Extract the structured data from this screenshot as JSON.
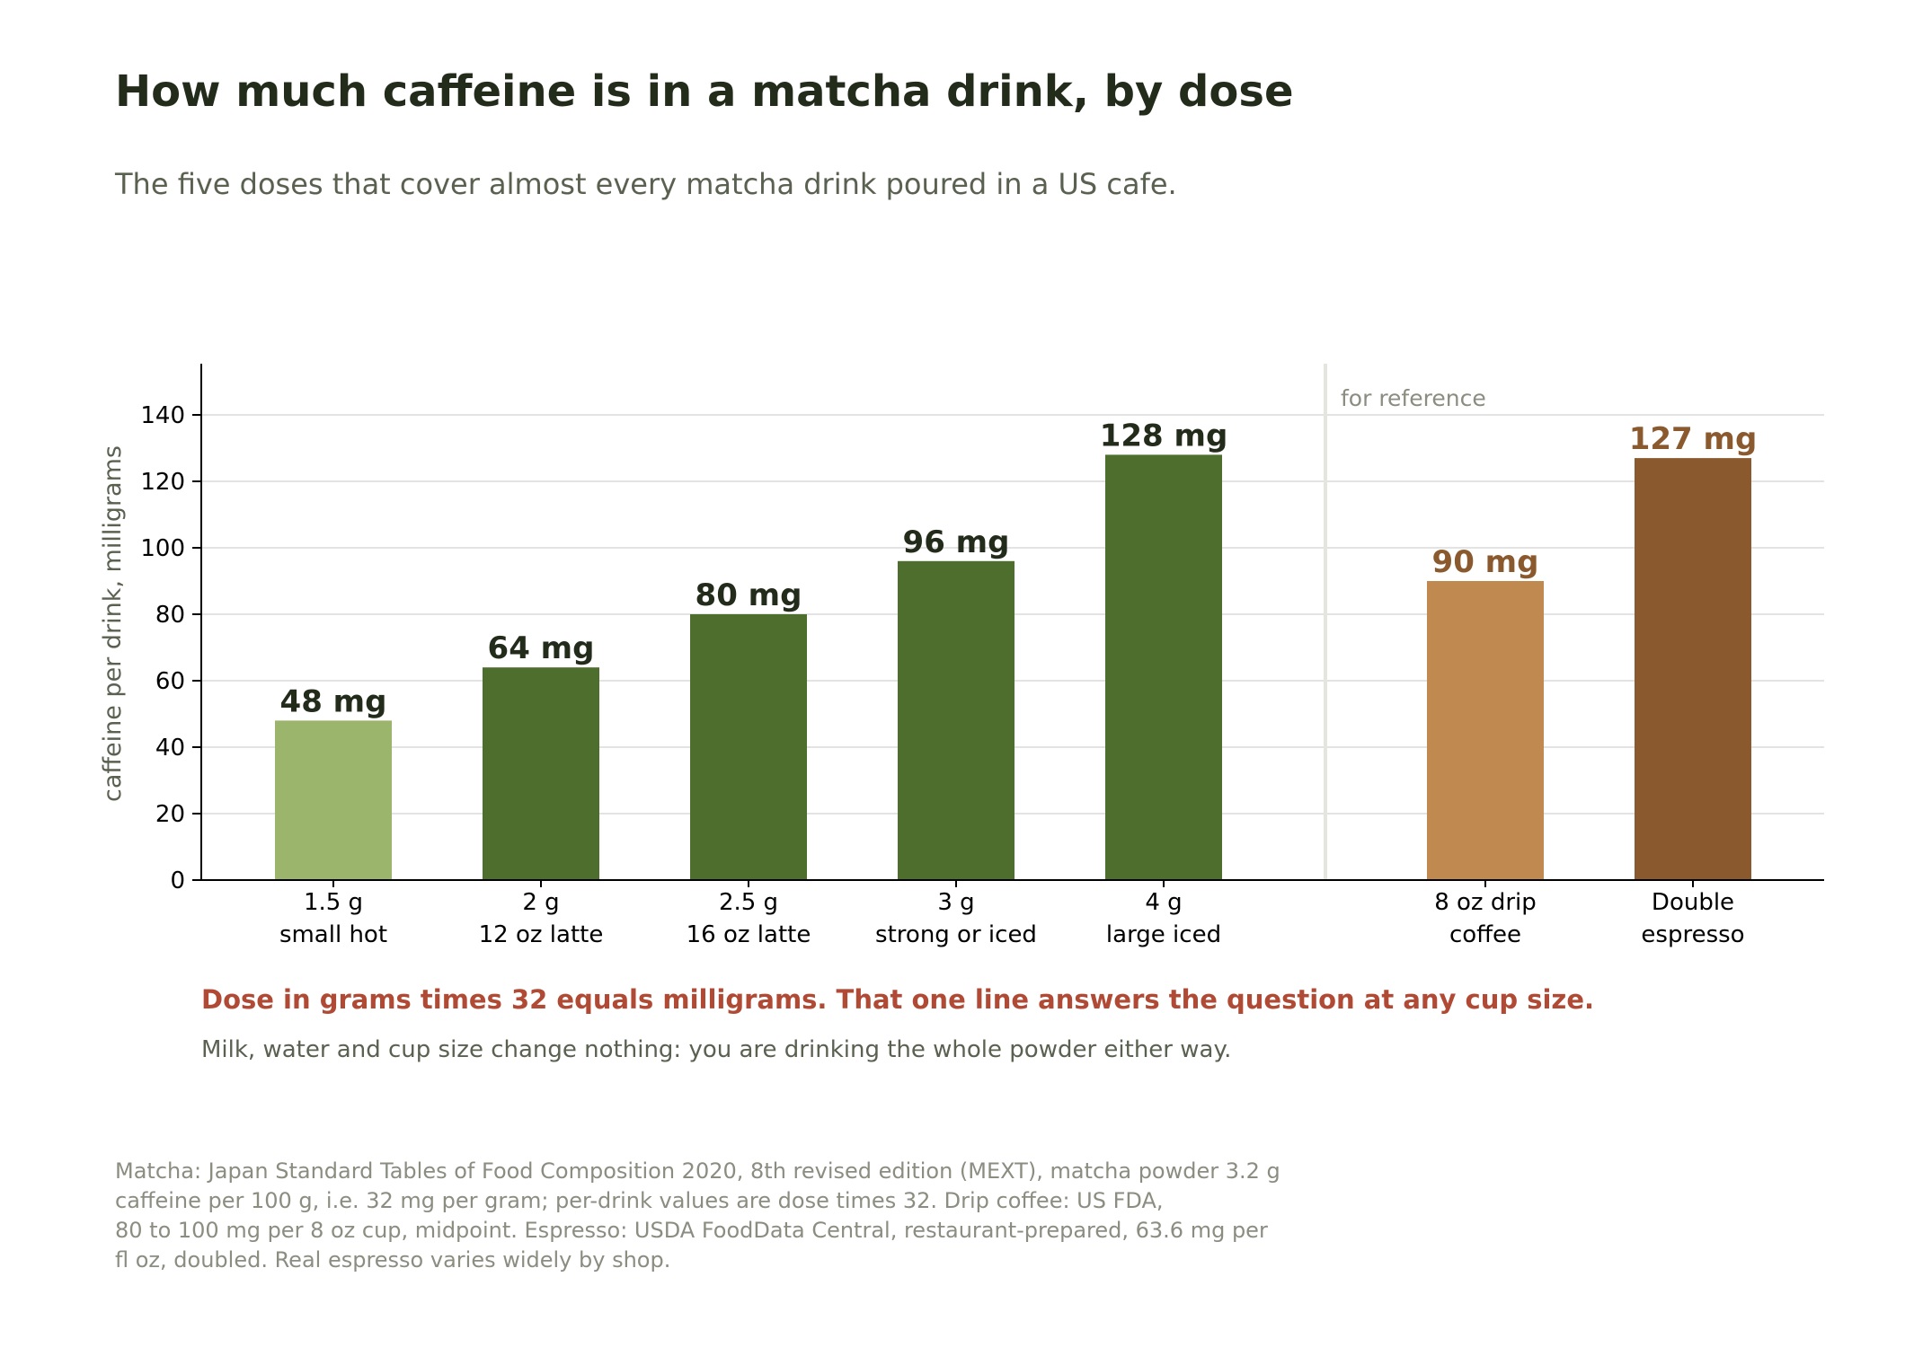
{
  "title": "How much caffeine is in a matcha drink, by dose",
  "subtitle": "The five doses that cover almost every matcha drink poured in a US cafe.",
  "takeaway": "Dose in grams times 32 equals milligrams. That one line answers the question at any cup size.",
  "takeaway_sub": "Milk, water and cup size change nothing: you are drinking the whole powder either way.",
  "source_lines": [
    "Matcha: Japan Standard Tables of Food Composition 2020, 8th revised edition (MEXT), matcha powder 3.2 g",
    "caffeine per 100 g, i.e. 32 mg per gram; per-drink values are dose times 32. Drip coffee: US FDA,",
    "80 to 100 mg per 8 oz cup, midpoint. Espresso: USDA FoodData Central, restaurant-prepared, 63.6 mg per",
    "fl oz, doubled. Real espresso varies widely by shop."
  ],
  "chart_data": {
    "type": "bar",
    "ylabel": "caffeine per drink, milligrams",
    "xlabel": "",
    "ylim": [
      0,
      155
    ],
    "yticks": [
      0,
      20,
      40,
      60,
      80,
      100,
      120,
      140
    ],
    "grid": true,
    "reference_label": "for reference",
    "categories": [
      [
        "1.5 g",
        "small hot"
      ],
      [
        "2 g",
        "12 oz latte"
      ],
      [
        "2.5 g",
        "16 oz latte"
      ],
      [
        "3 g",
        "strong or iced"
      ],
      [
        "4 g",
        "large iced"
      ],
      [
        "8 oz drip",
        "coffee"
      ],
      [
        "Double",
        "espresso"
      ]
    ],
    "values": [
      48,
      64,
      80,
      96,
      128,
      90,
      127
    ],
    "value_labels": [
      "48 mg",
      "64 mg",
      "80 mg",
      "96 mg",
      "128 mg",
      "90 mg",
      "127 mg"
    ],
    "groups": [
      "matcha",
      "matcha",
      "matcha",
      "matcha",
      "matcha",
      "reference",
      "reference"
    ],
    "colors": {
      "bars": [
        "#9cb56c",
        "#4e6e2e",
        "#4e6e2e",
        "#4e6e2e",
        "#4e6e2e",
        "#c08950",
        "#8a5a2e"
      ],
      "matcha_label": "#232b1b",
      "reference_label": "#8a5a2e",
      "grid": "#e3e3e3",
      "axis": "#000000",
      "divider": "#e5e5e0"
    }
  }
}
